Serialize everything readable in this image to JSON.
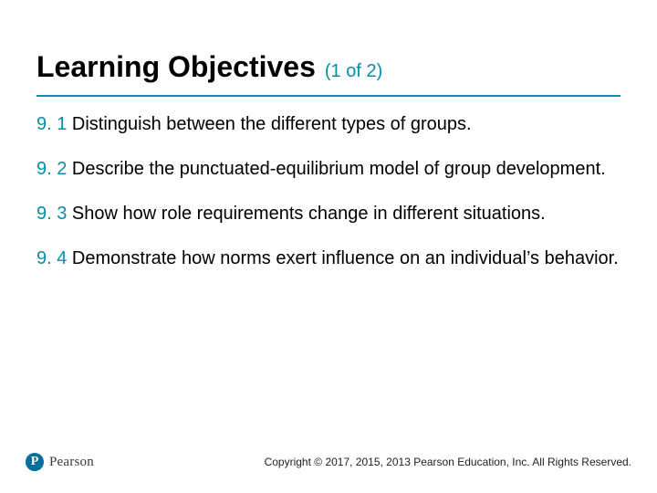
{
  "colors": {
    "accent": "#0a8ca8",
    "text": "#000000",
    "logo_bg": "#006f9b",
    "background": "#ffffff"
  },
  "title": "Learning Objectives",
  "subtitle": "(1 of 2)",
  "objectives": [
    {
      "num": "9. 1",
      "text": " Distinguish between the different types of groups."
    },
    {
      "num": "9. 2",
      "text": " Describe the punctuated-equilibrium model of group development."
    },
    {
      "num": "9. 3",
      "text": " Show how role requirements change in different situations."
    },
    {
      "num": "9. 4",
      "text": " Demonstrate how norms exert influence on an individual’s behavior."
    }
  ],
  "logo": {
    "mark": "P",
    "text": "Pearson"
  },
  "copyright": "Copyright © 2017, 2015, 2013 Pearson Education, Inc. All Rights Reserved."
}
